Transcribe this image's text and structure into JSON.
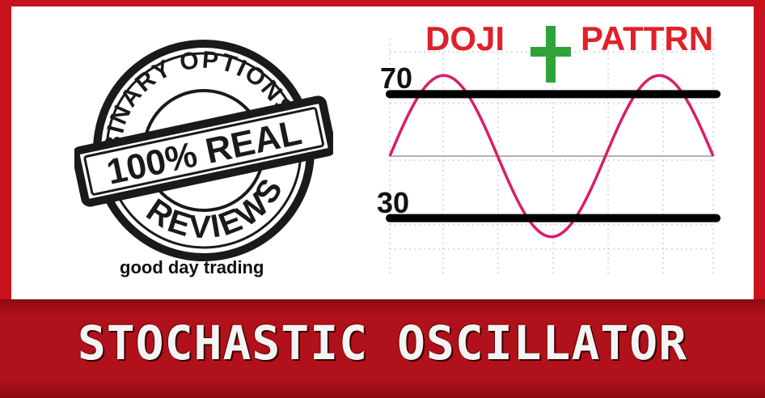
{
  "banner": {
    "title": "STOCHASTIC OSCILLATOR"
  },
  "stamp": {
    "top_text": "BINARY OPTIONS",
    "center_text": "100% REAL",
    "bottom_text": "REVIEWS"
  },
  "tagline": "good day trading",
  "chart_data": {
    "type": "line",
    "title": "DOJI + PATTRN",
    "title_left": "DOJI",
    "title_right": "PATTRN",
    "reference_lines": [
      {
        "label": "70",
        "value": 70
      },
      {
        "label": "30",
        "value": 30
      }
    ],
    "center_value": 50,
    "ylim": [
      20,
      80
    ],
    "grid": true,
    "series": [
      {
        "values": [
          50,
          76,
          50,
          24,
          50,
          76,
          50
        ]
      }
    ]
  },
  "colors": {
    "frame_red": "#c8121c",
    "title_red": "#e0202a",
    "plus_green": "#2fa23a",
    "wave_pink": "#d81e6a",
    "panel_white": "#ffffff"
  },
  "icons": {
    "plus": "plus-icon"
  }
}
